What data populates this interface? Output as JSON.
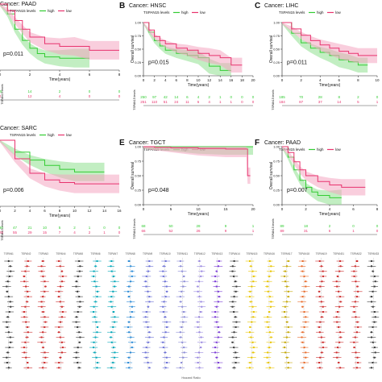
{
  "figure": {
    "colors": {
      "high": "#33cc33",
      "low": "#e8336e",
      "high_band": "#8fe08f",
      "low_band": "#f4a6c1"
    },
    "legend_title": "TSPAN15 levels",
    "legend_items": [
      "high",
      "low"
    ],
    "y_axis_label": "Overall survival",
    "x_axis_label": "Time(years)",
    "risk_axis_label": "TSPAN15 levels",
    "forest_x_label": "Hazard Ratio"
  },
  "panels": [
    {
      "letter": "",
      "title": "Cancer: PAAD",
      "pvalue": "p=0.011",
      "xticks": [
        "0",
        "2",
        "4",
        "6",
        "8"
      ],
      "risk_high": [
        "25",
        "14",
        "2",
        "0",
        "0"
      ],
      "risk_low": [
        "0",
        "12",
        "4",
        "0",
        "0"
      ]
    },
    {
      "letter": "B",
      "title": "Cancer: HNSC",
      "pvalue": "p=0.015",
      "xticks": [
        "0",
        "2",
        "4",
        "6",
        "8",
        "10",
        "12",
        "14",
        "16",
        "18",
        "20"
      ],
      "risk_high": [
        "250",
        "97",
        "42",
        "14",
        "6",
        "4",
        "2",
        "1",
        "0",
        "0",
        "0"
      ],
      "risk_low": [
        "251",
        "110",
        "51",
        "24",
        "11",
        "6",
        "4",
        "1",
        "1",
        "0",
        "0"
      ]
    },
    {
      "letter": "C",
      "title": "Cancer: LIHC",
      "pvalue": "p=0.011",
      "xticks": [
        "0",
        "2",
        "4",
        "6",
        "8",
        "10"
      ],
      "risk_high": [
        "185",
        "70",
        "28",
        "8",
        "2",
        "0"
      ],
      "risk_low": [
        "184",
        "87",
        "37",
        "14",
        "5",
        "1"
      ]
    },
    {
      "letter": "",
      "title": "Cancer: SARC",
      "pvalue": "p=0.006",
      "xticks": [
        "0",
        "2",
        "4",
        "6",
        "8",
        "10",
        "12",
        "14",
        "16"
      ],
      "risk_high": [
        "130",
        "47",
        "21",
        "10",
        "5",
        "2",
        "1",
        "0",
        "0"
      ],
      "risk_low": [
        "129",
        "55",
        "29",
        "15",
        "7",
        "4",
        "2",
        "1",
        "0"
      ]
    },
    {
      "letter": "E",
      "title": "Cancer: TGCT",
      "pvalue": "p=0.048",
      "xticks": [
        "0",
        "5",
        "10",
        "15",
        "20"
      ],
      "risk_high": [
        "68",
        "50",
        "28",
        "9",
        "1"
      ],
      "risk_low": [
        "66",
        "52",
        "26",
        "9",
        "1"
      ]
    },
    {
      "letter": "F",
      "title": "Cancer: PAAD",
      "pvalue": "p=0.007",
      "xticks": [
        "0",
        "2",
        "4",
        "6",
        "8"
      ],
      "risk_high": [
        "89",
        "18",
        "2",
        "0",
        "0"
      ],
      "risk_low": [
        "89",
        "31",
        "6",
        "1",
        "0"
      ]
    }
  ],
  "forest": {
    "labels": [
      "TSPAN1",
      "TSPAN2",
      "TSPAN3",
      "TSPAN4",
      "TSPAN5",
      "TSPAN6",
      "TSPAN7",
      "TSPAN8",
      "TSPAN9",
      "TSPAN10",
      "TSPAN11",
      "TSPAN12",
      "TSPAN13",
      "TSPAN14",
      "TSPAN15",
      "TSPAN16",
      "TSPAN17",
      "TSPAN18",
      "TSPAN19",
      "TSPAN31",
      "TSPAN32",
      "TSPAN33"
    ],
    "colors": [
      "#3a3a3a",
      "#cc2b2b",
      "#cc2b2b",
      "#cc2b2b",
      "#3a3a3a",
      "#00a6b8",
      "#00a6b8",
      "#2a8ad6",
      "#6a6fd6",
      "#6a6fd6",
      "#8a8ad6",
      "#9a88e0",
      "#7a3ad6",
      "#3a3a3a",
      "#e8c400",
      "#e8c400",
      "#c4a600",
      "#e86a2a",
      "#cc2b2b",
      "#cc2b2b",
      "#cc2b2b",
      "#3a3a3a"
    ]
  },
  "chart_data": [
    {
      "type": "line",
      "title": "Cancer: PAAD",
      "xlabel": "Time(years)",
      "ylabel": "",
      "xlim": [
        0,
        8
      ],
      "ylim": [
        0,
        1
      ],
      "series": [
        {
          "name": "high",
          "x": [
            0,
            0.5,
            1,
            1.5,
            2,
            2.5,
            3,
            4,
            5,
            6
          ],
          "y": [
            1,
            0.85,
            0.62,
            0.45,
            0.33,
            0.25,
            0.2,
            0.18,
            0.18,
            0.18
          ]
        },
        {
          "name": "low",
          "x": [
            0,
            0.5,
            1,
            1.5,
            2,
            3,
            4,
            5,
            6,
            7,
            8
          ],
          "y": [
            1,
            0.9,
            0.75,
            0.62,
            0.5,
            0.4,
            0.36,
            0.36,
            0.3,
            0.3,
            0.3
          ]
        }
      ]
    },
    {
      "type": "line",
      "title": "Cancer: HNSC",
      "xlabel": "Time(years)",
      "ylabel": "Overall survival",
      "xlim": [
        0,
        20
      ],
      "ylim": [
        0,
        1
      ],
      "series": [
        {
          "name": "high",
          "x": [
            0,
            1,
            2,
            3,
            4,
            6,
            8,
            10,
            12,
            14,
            16
          ],
          "y": [
            1,
            0.82,
            0.66,
            0.56,
            0.48,
            0.42,
            0.38,
            0.34,
            0.18,
            0.1,
            0.1
          ]
        },
        {
          "name": "low",
          "x": [
            0,
            1,
            2,
            3,
            4,
            6,
            8,
            10,
            12,
            14,
            16,
            18
          ],
          "y": [
            1,
            0.86,
            0.74,
            0.66,
            0.6,
            0.52,
            0.48,
            0.42,
            0.38,
            0.34,
            0.2,
            0.2
          ]
        }
      ]
    },
    {
      "type": "line",
      "title": "Cancer: LIHC",
      "xlabel": "Time(years)",
      "ylabel": "Overall survival",
      "xlim": [
        0,
        10
      ],
      "ylim": [
        0,
        1
      ],
      "series": [
        {
          "name": "high",
          "x": [
            0,
            1,
            2,
            3,
            4,
            5,
            6,
            7,
            8,
            9
          ],
          "y": [
            1,
            0.8,
            0.62,
            0.52,
            0.44,
            0.38,
            0.3,
            0.26,
            0.2,
            0.2
          ]
        },
        {
          "name": "low",
          "x": [
            0,
            1,
            2,
            3,
            4,
            5,
            6,
            7,
            8,
            9,
            10
          ],
          "y": [
            1,
            0.88,
            0.76,
            0.66,
            0.58,
            0.52,
            0.46,
            0.42,
            0.38,
            0.38,
            0.38
          ]
        }
      ]
    },
    {
      "type": "line",
      "title": "Cancer: SARC",
      "xlabel": "Time(years)",
      "ylabel": "",
      "xlim": [
        0,
        16
      ],
      "ylim": [
        0,
        1
      ],
      "series": [
        {
          "name": "high",
          "x": [
            0,
            2,
            4,
            6,
            8,
            10,
            12,
            14
          ],
          "y": [
            1,
            0.82,
            0.7,
            0.62,
            0.56,
            0.52,
            0.52,
            0.52
          ]
        },
        {
          "name": "low",
          "x": [
            0,
            2,
            4,
            6,
            8,
            10,
            12,
            14,
            16
          ],
          "y": [
            1,
            0.72,
            0.5,
            0.4,
            0.36,
            0.34,
            0.34,
            0.34,
            0.34
          ]
        }
      ]
    },
    {
      "type": "line",
      "title": "Cancer: TGCT",
      "xlabel": "Time(years)",
      "ylabel": "Overall survival",
      "xlim": [
        0,
        20
      ],
      "ylim": [
        0,
        1
      ],
      "series": [
        {
          "name": "high",
          "x": [
            0,
            5,
            10,
            15,
            19.5,
            20
          ],
          "y": [
            1,
            1,
            1,
            1,
            1,
            1
          ]
        },
        {
          "name": "low",
          "x": [
            0,
            2,
            5,
            10,
            15,
            18.8,
            19,
            19.5
          ],
          "y": [
            1,
            0.99,
            0.98,
            0.97,
            0.96,
            0.96,
            0.5,
            0.5
          ]
        }
      ]
    },
    {
      "type": "line",
      "title": "Cancer: PAAD",
      "xlabel": "Time(years)",
      "ylabel": "Overall survival",
      "xlim": [
        0,
        8
      ],
      "ylim": [
        0,
        1
      ],
      "series": [
        {
          "name": "high",
          "x": [
            0,
            0.5,
            1,
            1.5,
            2,
            2.5,
            3,
            4,
            5
          ],
          "y": [
            1,
            0.82,
            0.6,
            0.42,
            0.3,
            0.22,
            0.16,
            0.12,
            0.12
          ]
        },
        {
          "name": "low",
          "x": [
            0,
            0.5,
            1,
            1.5,
            2,
            3,
            4,
            5,
            6,
            7
          ],
          "y": [
            1,
            0.9,
            0.74,
            0.6,
            0.5,
            0.4,
            0.34,
            0.3,
            0.3,
            0.3
          ]
        }
      ]
    }
  ]
}
